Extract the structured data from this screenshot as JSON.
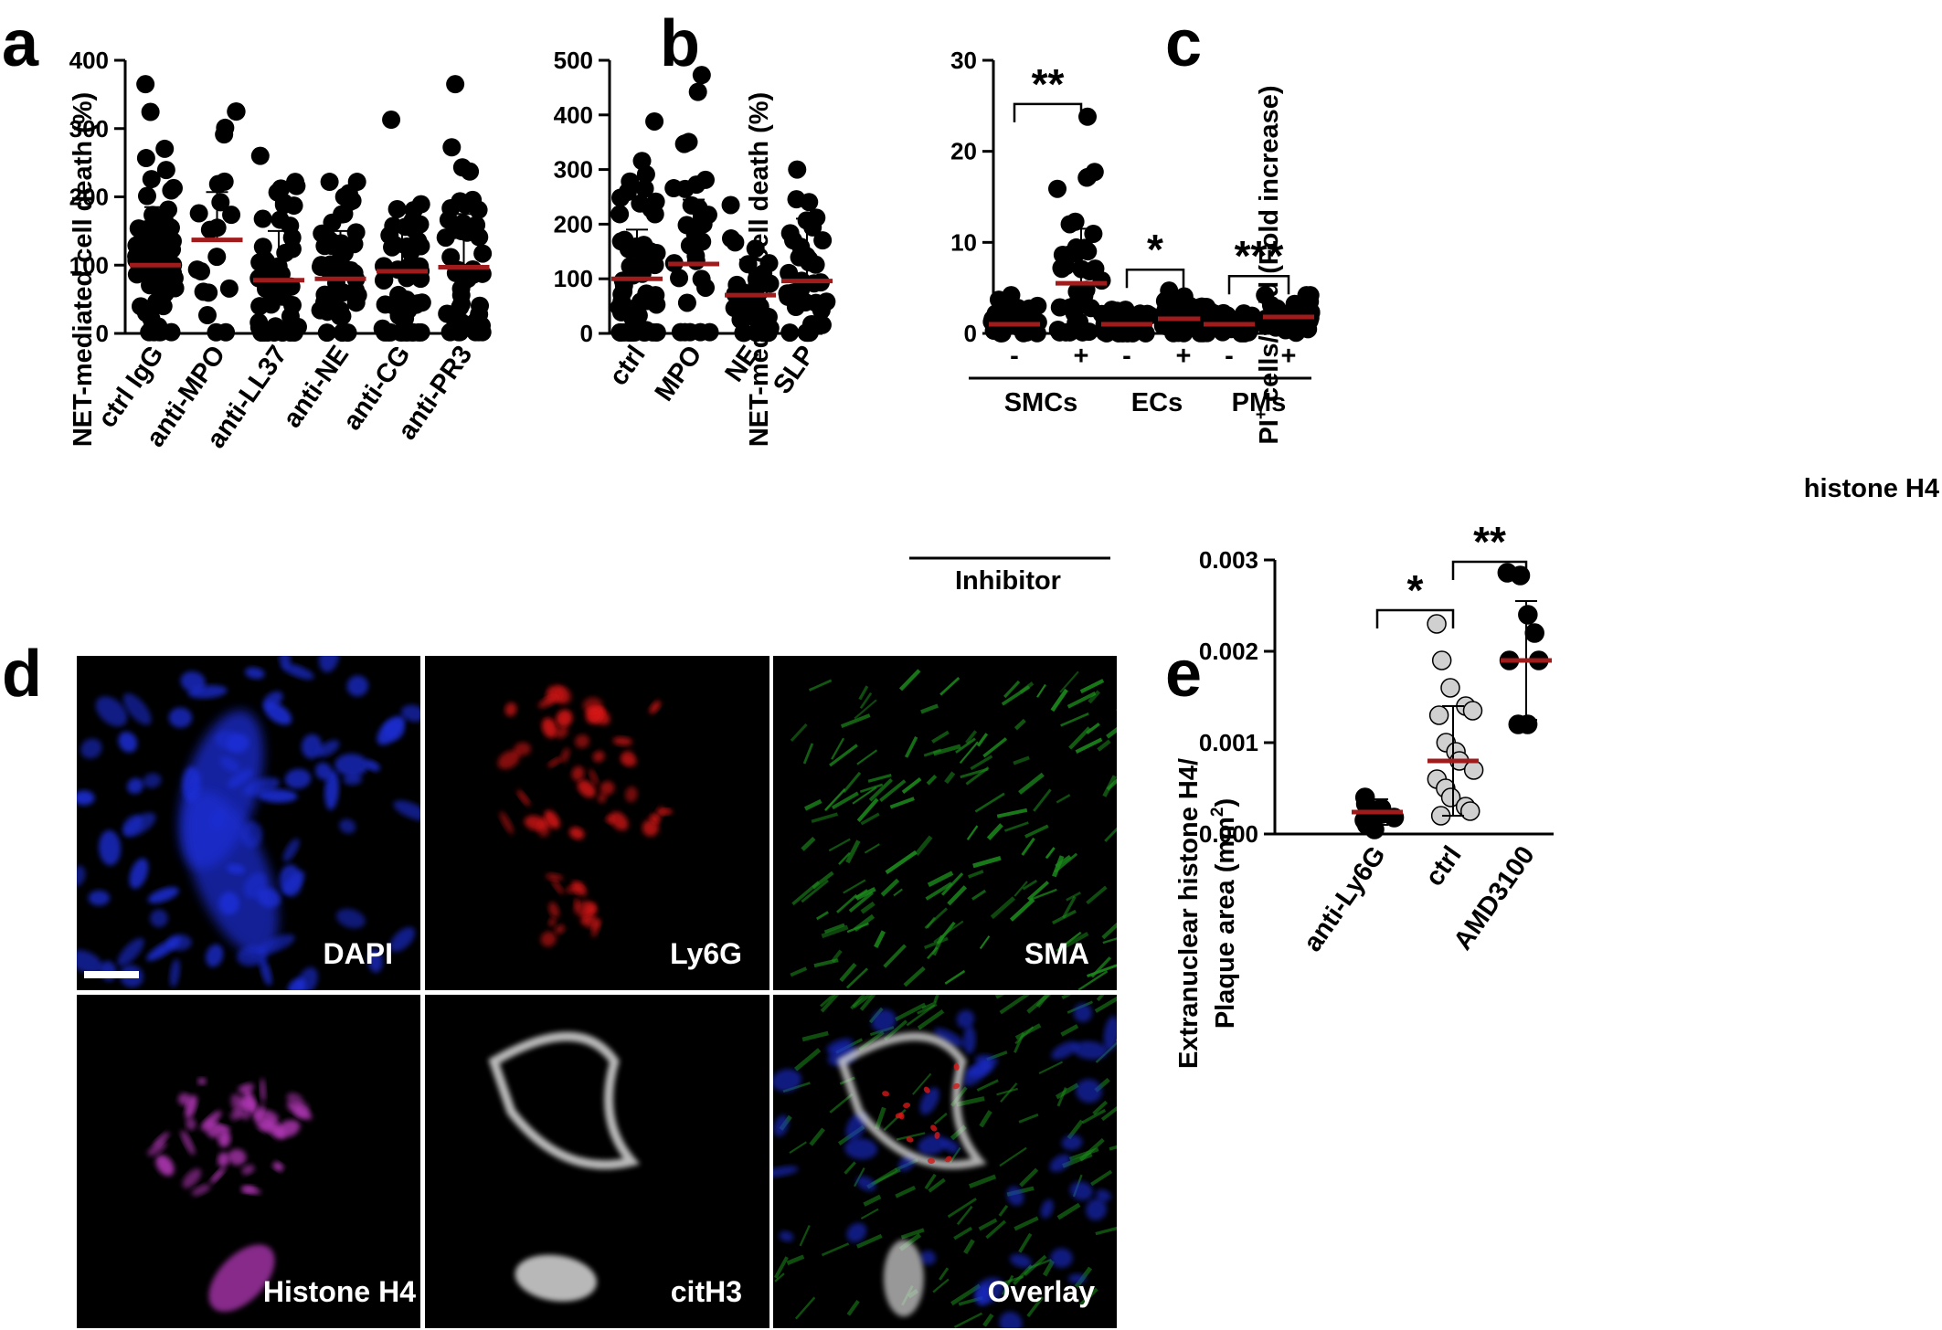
{
  "figure": {
    "panel_letters": [
      "a",
      "b",
      "c",
      "d",
      "e"
    ]
  },
  "chart_data": [
    {
      "panel": "a",
      "type": "scatter",
      "ylabel": "NET-mediated cell death (%)",
      "ylim": [
        0,
        400
      ],
      "yticks": [
        0,
        100,
        200,
        300,
        400
      ],
      "categories": [
        "ctrl IgG",
        "anti-MPO",
        "anti-LL37",
        "anti-NE",
        "anti-CG",
        "anti-PR3"
      ],
      "means": [
        100,
        137,
        78,
        80,
        91,
        97
      ],
      "error_top": [
        185,
        207,
        150,
        150,
        165,
        175
      ],
      "n_points": [
        60,
        20,
        55,
        50,
        50,
        45
      ],
      "max_points": [
        365,
        325,
        260,
        222,
        313,
        365
      ]
    },
    {
      "panel": "b",
      "type": "scatter",
      "ylabel": "NET-mediated cell death (%)",
      "ylim": [
        0,
        500
      ],
      "yticks": [
        0,
        100,
        200,
        300,
        400,
        500
      ],
      "categories": [
        "ctrl",
        "MPO",
        "NE",
        "SLP"
      ],
      "group_label": "Inhibitor",
      "group_members": [
        "MPO",
        "NE",
        "SLP"
      ],
      "means": [
        100,
        127,
        70,
        96
      ],
      "error_top": [
        190,
        245,
        135,
        210
      ],
      "n_points": [
        60,
        30,
        35,
        40
      ],
      "max_points": [
        388,
        473,
        235,
        300
      ]
    },
    {
      "panel": "c",
      "type": "scatter",
      "ylabel_main": "PI",
      "ylabel_sup": "+",
      "ylabel_rest": " cells/field (Fold increase)",
      "ylim": [
        0,
        30
      ],
      "yticks": [
        0,
        10,
        20,
        30
      ],
      "treatment_label": "histone H4",
      "groups": [
        "SMCs",
        "ECs",
        "PMs"
      ],
      "conditions": [
        "-",
        "+",
        "-",
        "+",
        "-",
        "+"
      ],
      "means": [
        1.0,
        5.5,
        1.0,
        1.6,
        1.0,
        1.8
      ],
      "error_top": [
        1.6,
        11.5,
        1.6,
        2.6,
        1.6,
        2.8
      ],
      "max_points": [
        4.2,
        23.8,
        2.6,
        4.7,
        2.4,
        4.2
      ],
      "significance": [
        "**",
        "*",
        "***"
      ]
    },
    {
      "panel": "e",
      "type": "scatter",
      "ylabel_line1": "Extranuclear histone H4/",
      "ylabel_line2": "Plaque area (mm",
      "ylabel_sup": "2",
      "ylabel_end": ")",
      "ylim": [
        0,
        0.003
      ],
      "yticks": [
        "0.000",
        "0.001",
        "0.002",
        "0.003"
      ],
      "categories": [
        "anti-Ly6G",
        "ctrl",
        "AMD3100"
      ],
      "means": [
        0.00024,
        0.0008,
        0.0019
      ],
      "error_top": [
        0.00038,
        0.0014,
        0.00255
      ],
      "error_bottom": [
        0.0001,
        0.0002,
        0.00125
      ],
      "points": [
        [
          0.0004,
          0.00033,
          0.00028,
          0.00022,
          0.00018,
          0.00015,
          0.0001,
          5e-05
        ],
        [
          0.0023,
          0.0019,
          0.0016,
          0.0014,
          0.00135,
          0.0013,
          0.001,
          0.0009,
          0.0008,
          0.0007,
          0.0006,
          0.0005,
          0.0004,
          0.0003,
          0.00025,
          0.0002
        ],
        [
          0.00286,
          0.00283,
          0.0024,
          0.0022,
          0.0019,
          0.0019,
          0.0012,
          0.0012
        ]
      ],
      "point_fills": [
        "#000000",
        "#d0d0d0",
        "#000000"
      ],
      "significance": [
        "*",
        "**"
      ]
    }
  ],
  "micrograph_panels": [
    {
      "label": "DAPI",
      "color": "#1d2fd6"
    },
    {
      "label": "Ly6G",
      "color": "#d61818"
    },
    {
      "label": "SMA",
      "color": "#1c8c1c"
    },
    {
      "label": "Histone H4",
      "color": "#b437b8"
    },
    {
      "label": "citH3",
      "color": "#d9d9d9"
    },
    {
      "label": "Overlay",
      "color": "#1c8c1c"
    }
  ],
  "colors": {
    "mean_line": "#a01c1c",
    "points": "#000000",
    "ctrl_points_e": "#d0d0d0"
  }
}
